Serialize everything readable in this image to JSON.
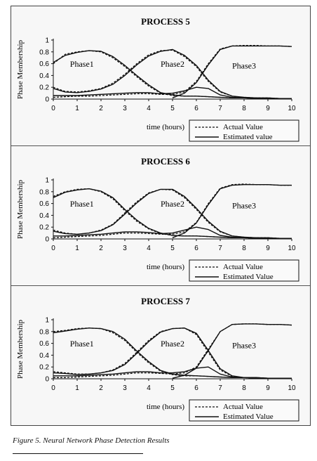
{
  "chart_data": [
    {
      "type": "line",
      "title": "PROCESS 5",
      "xlabel": "time (hours)",
      "ylabel": "Phase Membership",
      "xlim": [
        0,
        10
      ],
      "ylim": [
        0,
        1
      ],
      "xticks": [
        "0",
        "1",
        "2",
        "3",
        "4",
        "5",
        "6",
        "7",
        "8",
        "9",
        "10"
      ],
      "yticks": [
        "0",
        "0.2",
        "0.4",
        "0.6",
        "0.8",
        "1"
      ],
      "legend_position": "bottom-right",
      "legend": [
        "Actual Value",
        "Estimated value"
      ],
      "annotations": [
        "Phase1",
        "Phase2",
        "Phase3"
      ],
      "x": [
        0,
        0.5,
        1,
        1.5,
        2,
        2.5,
        3,
        3.5,
        4,
        4.5,
        5,
        5.5,
        6,
        6.5,
        7,
        7.5,
        8,
        8.5,
        9,
        9.5,
        10
      ],
      "series": [
        {
          "name": "Actual Value",
          "style": "dashed",
          "curve": "Phase1",
          "values": [
            0.6,
            0.76,
            0.8,
            0.82,
            0.8,
            0.7,
            0.55,
            0.38,
            0.22,
            0.1,
            0.06,
            0.05,
            0.05,
            0.04,
            0.03,
            0.02,
            0.02,
            0.01,
            0.01,
            0.01,
            0.01
          ]
        },
        {
          "name": "Actual Value",
          "style": "dashed",
          "curve": "Phase2",
          "values": [
            0.2,
            0.13,
            0.12,
            0.14,
            0.18,
            0.27,
            0.42,
            0.6,
            0.75,
            0.82,
            0.83,
            0.72,
            0.55,
            0.3,
            0.12,
            0.05,
            0.03,
            0.02,
            0.02,
            0.01,
            0.01
          ]
        },
        {
          "name": "Actual Value",
          "style": "dashed",
          "curve": "Phase3",
          "values": [
            0.03,
            0.04,
            0.05,
            0.05,
            0.06,
            0.07,
            0.08,
            0.09,
            0.09,
            0.08,
            0.08,
            0.12,
            0.3,
            0.6,
            0.85,
            0.9,
            0.91,
            0.91,
            0.9,
            0.9,
            0.89
          ]
        },
        {
          "name": "Estimated value",
          "style": "solid",
          "curve": "Phase1",
          "values": [
            0.62,
            0.74,
            0.79,
            0.82,
            0.81,
            0.72,
            0.57,
            0.4,
            0.24,
            0.11,
            0.07,
            0.05,
            0.05,
            0.04,
            0.03,
            0.02,
            0.02,
            0.01,
            0.01,
            0.01,
            0.01
          ]
        },
        {
          "name": "Estimated value",
          "style": "solid",
          "curve": "Phase2",
          "values": [
            0.18,
            0.12,
            0.11,
            0.13,
            0.17,
            0.25,
            0.4,
            0.58,
            0.73,
            0.81,
            0.84,
            0.74,
            0.57,
            0.32,
            0.13,
            0.05,
            0.03,
            0.02,
            0.02,
            0.01,
            0.01
          ]
        },
        {
          "name": "Estimated value",
          "style": "solid",
          "curve": "Phase3",
          "values": [
            0.06,
            0.06,
            0.06,
            0.07,
            0.08,
            0.09,
            0.1,
            0.11,
            0.11,
            0.09,
            0.1,
            0.14,
            0.2,
            0.18,
            0.07,
            0.03,
            0.02,
            0.02,
            0.01,
            0.01,
            0.01
          ]
        },
        {
          "name": "Estimated value",
          "style": "solid",
          "curve": "Phase3-rise",
          "values": [
            0.0,
            0.0,
            0.0,
            0.0,
            0.0,
            0.0,
            0.0,
            0.0,
            0.0,
            0.0,
            0.02,
            0.1,
            0.28,
            0.58,
            0.84,
            0.9,
            0.9,
            0.9,
            0.9,
            0.9,
            0.89
          ]
        }
      ]
    },
    {
      "type": "line",
      "title": "PROCESS 6",
      "xlabel": "time (hours)",
      "ylabel": "Phase Membership",
      "xlim": [
        0,
        10
      ],
      "ylim": [
        0,
        1
      ],
      "xticks": [
        "0",
        "1",
        "2",
        "3",
        "4",
        "5",
        "6",
        "7",
        "8",
        "9",
        "10"
      ],
      "yticks": [
        "0",
        "0.2",
        "0.4",
        "0.6",
        "0.8",
        "1"
      ],
      "legend_position": "bottom-right",
      "legend": [
        "Actual Value",
        "Estimated Value"
      ],
      "annotations": [
        "Phase1",
        "Phase2",
        "Phase3"
      ],
      "x": [
        0,
        0.5,
        1,
        1.5,
        2,
        2.5,
        3,
        3.5,
        4,
        4.5,
        5,
        5.5,
        6,
        6.5,
        7,
        7.5,
        8,
        8.5,
        9,
        9.5,
        10
      ],
      "series": [
        {
          "name": "Actual Value",
          "style": "dashed",
          "curve": "Phase1",
          "values": [
            0.72,
            0.8,
            0.84,
            0.85,
            0.8,
            0.68,
            0.48,
            0.3,
            0.17,
            0.09,
            0.06,
            0.05,
            0.05,
            0.04,
            0.03,
            0.02,
            0.02,
            0.01,
            0.01,
            0.01,
            0.01
          ]
        },
        {
          "name": "Actual Value",
          "style": "dashed",
          "curve": "Phase2",
          "values": [
            0.15,
            0.1,
            0.08,
            0.1,
            0.15,
            0.25,
            0.44,
            0.63,
            0.78,
            0.84,
            0.83,
            0.7,
            0.5,
            0.28,
            0.12,
            0.05,
            0.03,
            0.02,
            0.02,
            0.01,
            0.01
          ]
        },
        {
          "name": "Actual Value",
          "style": "dashed",
          "curve": "Phase3",
          "values": [
            0.02,
            0.03,
            0.04,
            0.05,
            0.06,
            0.08,
            0.1,
            0.1,
            0.09,
            0.08,
            0.08,
            0.12,
            0.28,
            0.6,
            0.86,
            0.92,
            0.93,
            0.92,
            0.92,
            0.91,
            0.91
          ]
        },
        {
          "name": "Estimated Value",
          "style": "solid",
          "curve": "Phase1",
          "values": [
            0.7,
            0.79,
            0.83,
            0.85,
            0.81,
            0.7,
            0.5,
            0.32,
            0.18,
            0.1,
            0.06,
            0.05,
            0.05,
            0.04,
            0.03,
            0.02,
            0.02,
            0.01,
            0.01,
            0.01,
            0.01
          ]
        },
        {
          "name": "Estimated Value",
          "style": "solid",
          "curve": "Phase2",
          "values": [
            0.13,
            0.09,
            0.08,
            0.1,
            0.14,
            0.24,
            0.42,
            0.61,
            0.77,
            0.84,
            0.84,
            0.72,
            0.52,
            0.3,
            0.13,
            0.05,
            0.03,
            0.02,
            0.02,
            0.01,
            0.01
          ]
        },
        {
          "name": "Estimated Value",
          "style": "solid",
          "curve": "Phase3",
          "values": [
            0.05,
            0.05,
            0.06,
            0.07,
            0.08,
            0.1,
            0.12,
            0.12,
            0.11,
            0.09,
            0.1,
            0.15,
            0.2,
            0.16,
            0.06,
            0.03,
            0.02,
            0.02,
            0.01,
            0.01,
            0.01
          ]
        },
        {
          "name": "Estimated Value",
          "style": "solid",
          "curve": "Phase3-rise",
          "values": [
            0.0,
            0.0,
            0.0,
            0.0,
            0.0,
            0.0,
            0.0,
            0.0,
            0.0,
            0.0,
            0.02,
            0.1,
            0.27,
            0.58,
            0.85,
            0.91,
            0.92,
            0.92,
            0.92,
            0.91,
            0.91
          ]
        }
      ]
    },
    {
      "type": "line",
      "title": "PROCESS 7",
      "xlabel": "time (hours)",
      "ylabel": "Phase Membership",
      "xlim": [
        0,
        10
      ],
      "ylim": [
        0,
        1
      ],
      "xticks": [
        "0",
        "1",
        "2",
        "3",
        "4",
        "5",
        "6",
        "7",
        "8",
        "9",
        "10"
      ],
      "yticks": [
        "0",
        "0.2",
        "0.4",
        "0.6",
        "0.8",
        "1"
      ],
      "legend_position": "bottom-right",
      "legend": [
        "Actual Value",
        "Estimated Value"
      ],
      "annotations": [
        "Phase1",
        "Phase2",
        "Phase3"
      ],
      "x": [
        0,
        0.5,
        1,
        1.5,
        2,
        2.5,
        3,
        3.5,
        4,
        4.5,
        5,
        5.5,
        6,
        6.5,
        7,
        7.5,
        8,
        8.5,
        9,
        9.5,
        10
      ],
      "series": [
        {
          "name": "Actual Value",
          "style": "dashed",
          "curve": "Phase1",
          "values": [
            0.8,
            0.82,
            0.85,
            0.86,
            0.85,
            0.78,
            0.65,
            0.45,
            0.27,
            0.13,
            0.07,
            0.05,
            0.05,
            0.04,
            0.03,
            0.02,
            0.02,
            0.01,
            0.01,
            0.01,
            0.01
          ]
        },
        {
          "name": "Actual Value",
          "style": "dashed",
          "curve": "Phase2",
          "values": [
            0.12,
            0.1,
            0.08,
            0.08,
            0.1,
            0.15,
            0.26,
            0.45,
            0.65,
            0.8,
            0.85,
            0.86,
            0.75,
            0.45,
            0.15,
            0.04,
            0.02,
            0.02,
            0.01,
            0.01,
            0.01
          ]
        },
        {
          "name": "Actual Value",
          "style": "dashed",
          "curve": "Phase3",
          "values": [
            0.02,
            0.02,
            0.03,
            0.04,
            0.05,
            0.06,
            0.08,
            0.1,
            0.1,
            0.09,
            0.08,
            0.1,
            0.2,
            0.5,
            0.8,
            0.92,
            0.93,
            0.93,
            0.92,
            0.92,
            0.91
          ]
        },
        {
          "name": "Estimated Value",
          "style": "solid",
          "curve": "Phase1",
          "values": [
            0.78,
            0.81,
            0.84,
            0.86,
            0.85,
            0.8,
            0.67,
            0.47,
            0.29,
            0.14,
            0.08,
            0.06,
            0.05,
            0.04,
            0.03,
            0.02,
            0.02,
            0.01,
            0.01,
            0.01,
            0.01
          ]
        },
        {
          "name": "Estimated Value",
          "style": "solid",
          "curve": "Phase2",
          "values": [
            0.1,
            0.09,
            0.07,
            0.08,
            0.1,
            0.14,
            0.24,
            0.43,
            0.63,
            0.79,
            0.85,
            0.86,
            0.77,
            0.48,
            0.17,
            0.05,
            0.02,
            0.02,
            0.01,
            0.01,
            0.01
          ]
        },
        {
          "name": "Estimated Value",
          "style": "solid",
          "curve": "Phase3",
          "values": [
            0.05,
            0.05,
            0.05,
            0.06,
            0.07,
            0.08,
            0.1,
            0.12,
            0.12,
            0.1,
            0.1,
            0.12,
            0.18,
            0.2,
            0.08,
            0.03,
            0.02,
            0.02,
            0.01,
            0.01,
            0.01
          ]
        },
        {
          "name": "Estimated Value",
          "style": "solid",
          "curve": "Phase3-rise",
          "values": [
            0.0,
            0.0,
            0.0,
            0.0,
            0.0,
            0.0,
            0.0,
            0.0,
            0.0,
            0.0,
            0.01,
            0.06,
            0.18,
            0.48,
            0.8,
            0.92,
            0.93,
            0.93,
            0.92,
            0.92,
            0.91
          ]
        }
      ]
    }
  ],
  "caption": "Figure 5. Neural Network Phase Detection Results"
}
